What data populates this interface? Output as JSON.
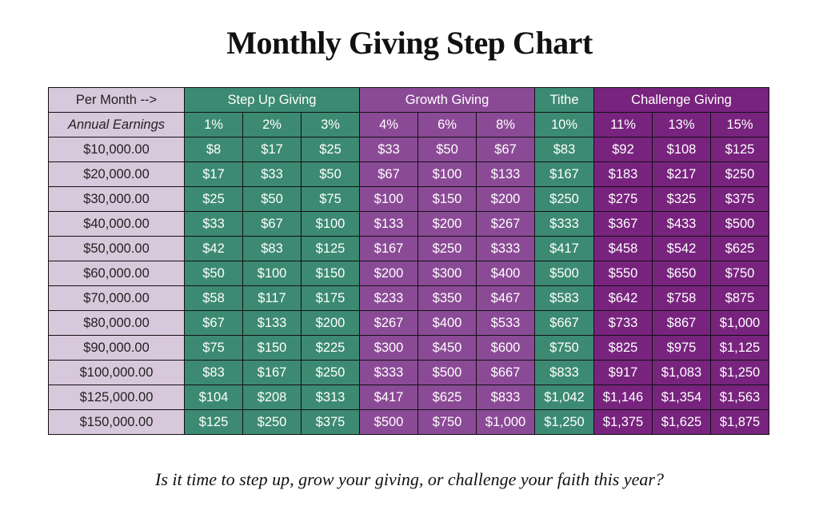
{
  "title": "Monthly Giving Step Chart",
  "caption": "Is it time to step up, grow your giving, or challenge your faith this year?",
  "colors": {
    "label_bg": "#d8c8dc",
    "step_up": "#3c8a72",
    "growth": "#8b4a96",
    "tithe": "#3c8a72",
    "challenge": "#78237e",
    "border": "#111111"
  },
  "chart_data": {
    "type": "table",
    "title": "Monthly Giving Step Chart",
    "header_label": "Per Month -->",
    "row_header_label": "Annual Earnings",
    "groups": [
      {
        "name": "Step Up Giving",
        "rates": [
          "1%",
          "2%",
          "3%"
        ]
      },
      {
        "name": "Growth Giving",
        "rates": [
          "4%",
          "6%",
          "8%"
        ]
      },
      {
        "name": "Tithe",
        "rates": [
          "10%"
        ]
      },
      {
        "name": "Challenge Giving",
        "rates": [
          "11%",
          "13%",
          "15%"
        ]
      }
    ],
    "rows": [
      {
        "earnings": "$10,000.00",
        "values": [
          "$8",
          "$17",
          "$25",
          "$33",
          "$50",
          "$67",
          "$83",
          "$92",
          "$108",
          "$125"
        ]
      },
      {
        "earnings": "$20,000.00",
        "values": [
          "$17",
          "$33",
          "$50",
          "$67",
          "$100",
          "$133",
          "$167",
          "$183",
          "$217",
          "$250"
        ]
      },
      {
        "earnings": "$30,000.00",
        "values": [
          "$25",
          "$50",
          "$75",
          "$100",
          "$150",
          "$200",
          "$250",
          "$275",
          "$325",
          "$375"
        ]
      },
      {
        "earnings": "$40,000.00",
        "values": [
          "$33",
          "$67",
          "$100",
          "$133",
          "$200",
          "$267",
          "$333",
          "$367",
          "$433",
          "$500"
        ]
      },
      {
        "earnings": "$50,000.00",
        "values": [
          "$42",
          "$83",
          "$125",
          "$167",
          "$250",
          "$333",
          "$417",
          "$458",
          "$542",
          "$625"
        ]
      },
      {
        "earnings": "$60,000.00",
        "values": [
          "$50",
          "$100",
          "$150",
          "$200",
          "$300",
          "$400",
          "$500",
          "$550",
          "$650",
          "$750"
        ]
      },
      {
        "earnings": "$70,000.00",
        "values": [
          "$58",
          "$117",
          "$175",
          "$233",
          "$350",
          "$467",
          "$583",
          "$642",
          "$758",
          "$875"
        ]
      },
      {
        "earnings": "$80,000.00",
        "values": [
          "$67",
          "$133",
          "$200",
          "$267",
          "$400",
          "$533",
          "$667",
          "$733",
          "$867",
          "$1,000"
        ]
      },
      {
        "earnings": "$90,000.00",
        "values": [
          "$75",
          "$150",
          "$225",
          "$300",
          "$450",
          "$600",
          "$750",
          "$825",
          "$975",
          "$1,125"
        ]
      },
      {
        "earnings": "$100,000.00",
        "values": [
          "$83",
          "$167",
          "$250",
          "$333",
          "$500",
          "$667",
          "$833",
          "$917",
          "$1,083",
          "$1,250"
        ]
      },
      {
        "earnings": "$125,000.00",
        "values": [
          "$104",
          "$208",
          "$313",
          "$417",
          "$625",
          "$833",
          "$1,042",
          "$1,146",
          "$1,354",
          "$1,563"
        ]
      },
      {
        "earnings": "$150,000.00",
        "values": [
          "$125",
          "$250",
          "$375",
          "$500",
          "$750",
          "$1,000",
          "$1,250",
          "$1,375",
          "$1,625",
          "$1,875"
        ]
      }
    ]
  }
}
